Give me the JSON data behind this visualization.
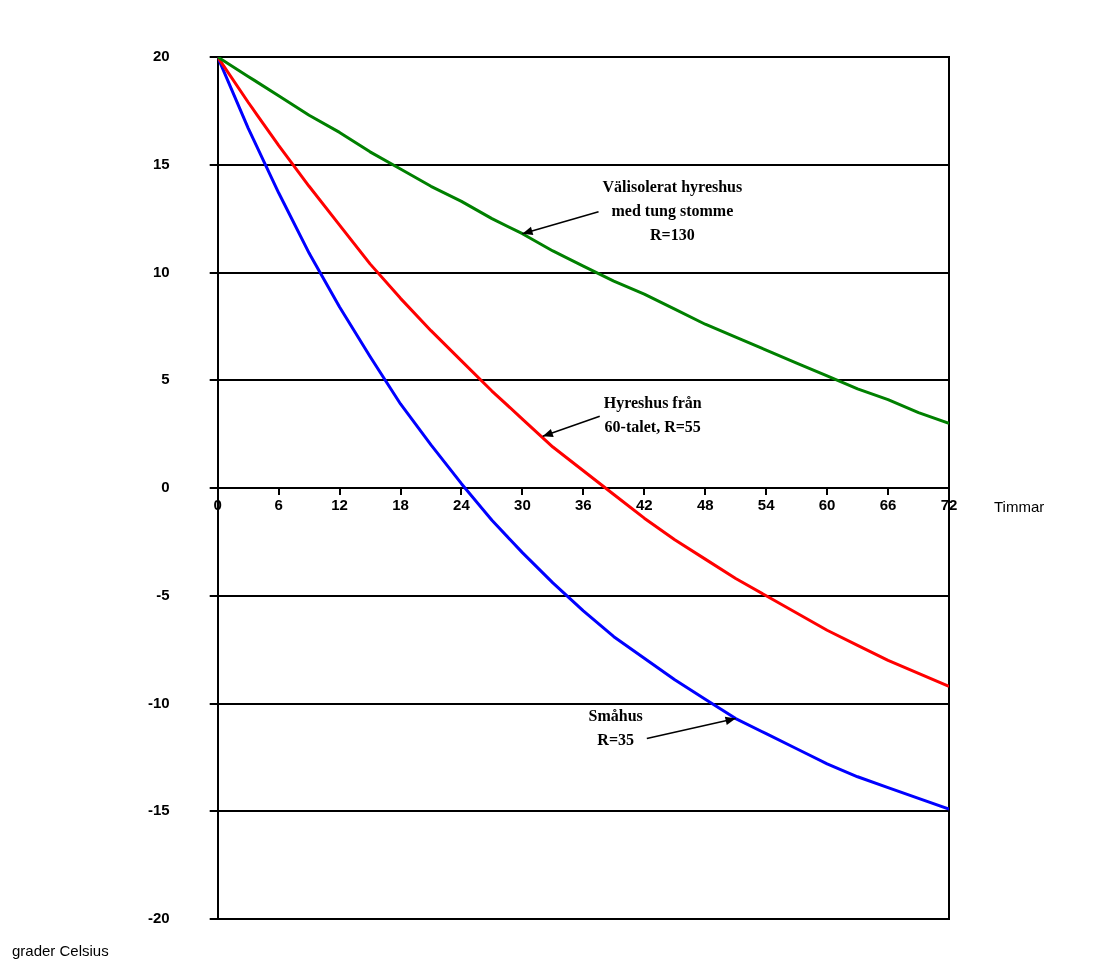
{
  "chart_data": {
    "type": "line",
    "xlabel": "Timmar",
    "ylabel": "grader Celsius",
    "x": [
      0,
      3,
      6,
      9,
      12,
      15,
      18,
      21,
      24,
      27,
      30,
      33,
      36,
      39,
      42,
      45,
      48,
      51,
      54,
      57,
      60,
      63,
      66,
      69,
      72
    ],
    "series": [
      {
        "color": "#008000",
        "values": [
          20,
          19.1,
          18.2,
          17.3,
          16.5,
          15.6,
          14.8,
          14.0,
          13.3,
          12.5,
          11.8,
          11.0,
          10.3,
          9.6,
          9.0,
          8.3,
          7.6,
          7.0,
          6.4,
          5.8,
          5.2,
          4.6,
          4.1,
          3.5,
          3.0
        ]
      },
      {
        "color": "#ff0000",
        "values": [
          20,
          17.9,
          15.9,
          14.0,
          12.2,
          10.4,
          8.8,
          7.3,
          5.9,
          4.5,
          3.2,
          1.9,
          0.8,
          -0.3,
          -1.4,
          -2.4,
          -3.3,
          -4.2,
          -5.0,
          -5.8,
          -6.6,
          -7.3,
          -8.0,
          -8.6,
          -9.2
        ]
      },
      {
        "color": "#0000ff",
        "values": [
          20,
          16.7,
          13.7,
          10.9,
          8.4,
          6.1,
          3.9,
          2.0,
          0.2,
          -1.5,
          -3.0,
          -4.4,
          -5.7,
          -6.9,
          -7.9,
          -8.9,
          -9.8,
          -10.7,
          -11.4,
          -12.1,
          -12.8,
          -13.4,
          -13.9,
          -14.4,
          -14.9
        ]
      }
    ],
    "xlim": [
      0,
      72
    ],
    "xticks": [
      0,
      6,
      12,
      18,
      24,
      30,
      36,
      42,
      48,
      54,
      60,
      66,
      72
    ],
    "ylim": [
      -20,
      20
    ],
    "yticks": [
      -20,
      -15,
      -10,
      -5,
      0,
      5,
      10,
      15,
      20
    ],
    "grid": "y",
    "legend": false,
    "marker": "none",
    "line_style": "solid",
    "annotations": [
      {
        "text": "Välisolerat hyreshus\nmed tung stomme\nR=130",
        "x": 30,
        "y": 11.8
      },
      {
        "text": "Hyreshus från\n60-talet, R=55",
        "x": 32,
        "y": 2.4
      },
      {
        "text": "Småhus\nR=35",
        "x": 51,
        "y": -10.7
      }
    ]
  }
}
